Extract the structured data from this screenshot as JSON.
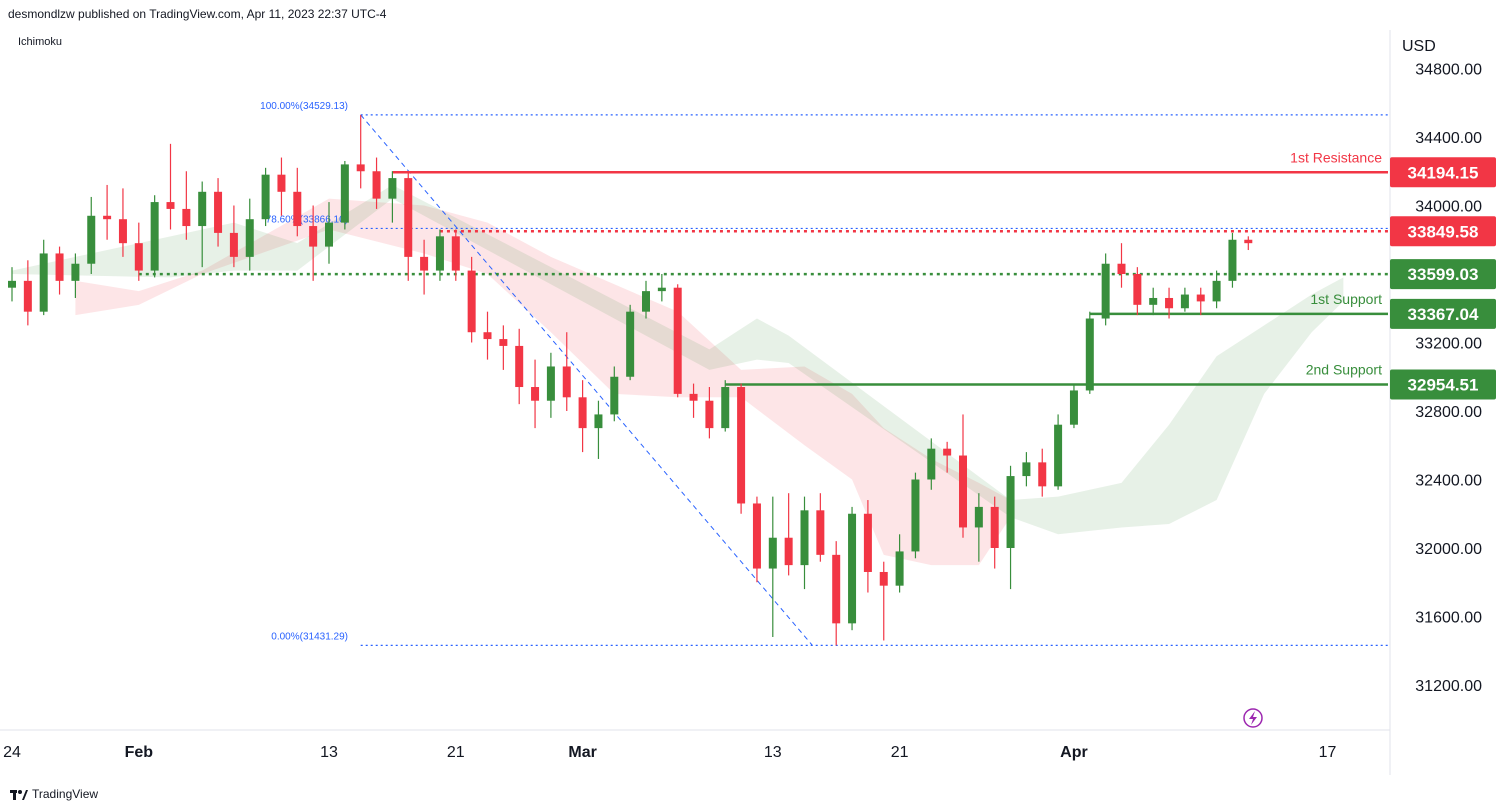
{
  "header": {
    "publisher": "desmondlzw published on TradingView.com, Apr 11, 2023 22:37 UTC-4"
  },
  "indicator": {
    "name": "Ichimoku"
  },
  "footer": {
    "brand": "TradingView"
  },
  "chart_data": {
    "type": "candlestick",
    "currency": "USD",
    "y_ticks": [
      "34800.00",
      "34400.00",
      "34000.00",
      "33600.00",
      "33200.00",
      "32800.00",
      "32400.00",
      "32000.00",
      "31600.00",
      "31200.00"
    ],
    "y_tick_values": [
      34800,
      34400,
      34000,
      33600,
      33200,
      32800,
      32400,
      32000,
      31600,
      31200
    ],
    "ylim": [
      30950,
      35000
    ],
    "x_ticks": [
      {
        "label": "24",
        "day": 0
      },
      {
        "label": "Feb",
        "day": 8
      },
      {
        "label": "13",
        "day": 20
      },
      {
        "label": "21",
        "day": 28
      },
      {
        "label": "Mar",
        "day": 36
      },
      {
        "label": "13",
        "day": 48
      },
      {
        "label": "21",
        "day": 56
      },
      {
        "label": "Apr",
        "day": 67
      },
      {
        "label": "17",
        "day": 83
      }
    ],
    "levels": [
      {
        "name": "resistance1",
        "label": "1st Resistance",
        "value": 34194.15,
        "value_text": "34194.15",
        "color": "#f23645",
        "style": "solid",
        "start_day": 24
      },
      {
        "name": "resistance-dotted",
        "label": "",
        "value": 33849.58,
        "value_text": "33849.58",
        "color": "#f23645",
        "style": "dotted",
        "start_day": 27
      },
      {
        "name": "pivot-dotted",
        "label": "",
        "value": 33599.03,
        "value_text": "33599.03",
        "color": "#388e3c",
        "style": "dotted",
        "start_day": 8
      },
      {
        "name": "support1",
        "label": "1st Support",
        "value": 33367.04,
        "value_text": "33367.04",
        "color": "#388e3c",
        "style": "solid",
        "start_day": 68
      },
      {
        "name": "support2",
        "label": "2nd Support",
        "value": 32954.51,
        "value_text": "32954.51",
        "color": "#388e3c",
        "style": "solid",
        "start_day": 45
      }
    ],
    "fibonacci": [
      {
        "label": "100.00%(34529.13)",
        "value": 34529.13,
        "start_day": 22
      },
      {
        "label": "78.60%(33866.10)",
        "value": 33866.1,
        "start_day": 22
      },
      {
        "label": "0.00%(31431.29)",
        "value": 31431.29,
        "start_day": 22
      }
    ],
    "trend_line": {
      "from": {
        "day": 22,
        "value": 34529.13
      },
      "to": {
        "day": 50.5,
        "value": 31431.29
      }
    },
    "candles": [
      {
        "o": 33520,
        "h": 33640,
        "l": 33440,
        "c": 33560
      },
      {
        "o": 33560,
        "h": 33680,
        "l": 33300,
        "c": 33380
      },
      {
        "o": 33380,
        "h": 33800,
        "l": 33360,
        "c": 33720
      },
      {
        "o": 33720,
        "h": 33760,
        "l": 33480,
        "c": 33560
      },
      {
        "o": 33560,
        "h": 33720,
        "l": 33460,
        "c": 33660
      },
      {
        "o": 33660,
        "h": 34050,
        "l": 33600,
        "c": 33940
      },
      {
        "o": 33940,
        "h": 34120,
        "l": 33800,
        "c": 33920
      },
      {
        "o": 33920,
        "h": 34100,
        "l": 33700,
        "c": 33780
      },
      {
        "o": 33780,
        "h": 33900,
        "l": 33560,
        "c": 33620
      },
      {
        "o": 33620,
        "h": 34060,
        "l": 33580,
        "c": 34020
      },
      {
        "o": 34020,
        "h": 34360,
        "l": 33860,
        "c": 33980
      },
      {
        "o": 33980,
        "h": 34200,
        "l": 33800,
        "c": 33880
      },
      {
        "o": 33880,
        "h": 34140,
        "l": 33640,
        "c": 34080
      },
      {
        "o": 34080,
        "h": 34160,
        "l": 33760,
        "c": 33840
      },
      {
        "o": 33840,
        "h": 34000,
        "l": 33640,
        "c": 33700
      },
      {
        "o": 33700,
        "h": 34040,
        "l": 33620,
        "c": 33920
      },
      {
        "o": 33920,
        "h": 34220,
        "l": 33880,
        "c": 34180
      },
      {
        "o": 34180,
        "h": 34280,
        "l": 33940,
        "c": 34080
      },
      {
        "o": 34080,
        "h": 34220,
        "l": 33820,
        "c": 33880
      },
      {
        "o": 33880,
        "h": 34000,
        "l": 33560,
        "c": 33760
      },
      {
        "o": 33760,
        "h": 34020,
        "l": 33660,
        "c": 33900
      },
      {
        "o": 33900,
        "h": 34260,
        "l": 33860,
        "c": 34240
      },
      {
        "o": 34240,
        "h": 34529,
        "l": 34100,
        "c": 34200
      },
      {
        "o": 34200,
        "h": 34280,
        "l": 33980,
        "c": 34040
      },
      {
        "o": 34040,
        "h": 34200,
        "l": 33900,
        "c": 34160
      },
      {
        "o": 34160,
        "h": 34200,
        "l": 33560,
        "c": 33700
      },
      {
        "o": 33700,
        "h": 33800,
        "l": 33480,
        "c": 33620
      },
      {
        "o": 33620,
        "h": 33860,
        "l": 33560,
        "c": 33820
      },
      {
        "o": 33820,
        "h": 33860,
        "l": 33560,
        "c": 33620
      },
      {
        "o": 33620,
        "h": 33700,
        "l": 33200,
        "c": 33260
      },
      {
        "o": 33260,
        "h": 33380,
        "l": 33100,
        "c": 33220
      },
      {
        "o": 33220,
        "h": 33300,
        "l": 33040,
        "c": 33180
      },
      {
        "o": 33180,
        "h": 33280,
        "l": 32840,
        "c": 32940
      },
      {
        "o": 32940,
        "h": 33100,
        "l": 32700,
        "c": 32860
      },
      {
        "o": 32860,
        "h": 33140,
        "l": 32760,
        "c": 33060
      },
      {
        "o": 33060,
        "h": 33260,
        "l": 32800,
        "c": 32880
      },
      {
        "o": 32880,
        "h": 32980,
        "l": 32560,
        "c": 32700
      },
      {
        "o": 32700,
        "h": 32860,
        "l": 32520,
        "c": 32780
      },
      {
        "o": 32780,
        "h": 33060,
        "l": 32740,
        "c": 33000
      },
      {
        "o": 33000,
        "h": 33420,
        "l": 32980,
        "c": 33380
      },
      {
        "o": 33380,
        "h": 33560,
        "l": 33340,
        "c": 33500
      },
      {
        "o": 33500,
        "h": 33600,
        "l": 33440,
        "c": 33520
      },
      {
        "o": 33520,
        "h": 33540,
        "l": 32880,
        "c": 32900
      },
      {
        "o": 32900,
        "h": 32960,
        "l": 32760,
        "c": 32860
      },
      {
        "o": 32860,
        "h": 32940,
        "l": 32640,
        "c": 32700
      },
      {
        "o": 32700,
        "h": 32980,
        "l": 32680,
        "c": 32940
      },
      {
        "o": 32940,
        "h": 32960,
        "l": 32200,
        "c": 32260
      },
      {
        "o": 32260,
        "h": 32300,
        "l": 31800,
        "c": 31880
      },
      {
        "o": 31880,
        "h": 32300,
        "l": 31480,
        "c": 32060
      },
      {
        "o": 32060,
        "h": 32320,
        "l": 31840,
        "c": 31900
      },
      {
        "o": 31900,
        "h": 32300,
        "l": 31760,
        "c": 32220
      },
      {
        "o": 32220,
        "h": 32320,
        "l": 31920,
        "c": 31960
      },
      {
        "o": 31960,
        "h": 32040,
        "l": 31431,
        "c": 31560
      },
      {
        "o": 31560,
        "h": 32240,
        "l": 31520,
        "c": 32200
      },
      {
        "o": 32200,
        "h": 32280,
        "l": 31740,
        "c": 31860
      },
      {
        "o": 31860,
        "h": 31920,
        "l": 31460,
        "c": 31780
      },
      {
        "o": 31780,
        "h": 32080,
        "l": 31740,
        "c": 31980
      },
      {
        "o": 31980,
        "h": 32440,
        "l": 31940,
        "c": 32400
      },
      {
        "o": 32400,
        "h": 32640,
        "l": 32340,
        "c": 32580
      },
      {
        "o": 32580,
        "h": 32620,
        "l": 32440,
        "c": 32540
      },
      {
        "o": 32540,
        "h": 32780,
        "l": 32060,
        "c": 32120
      },
      {
        "o": 32120,
        "h": 32320,
        "l": 31920,
        "c": 32240
      },
      {
        "o": 32240,
        "h": 32300,
        "l": 31880,
        "c": 32000
      },
      {
        "o": 32000,
        "h": 32480,
        "l": 31760,
        "c": 32420
      },
      {
        "o": 32420,
        "h": 32560,
        "l": 32360,
        "c": 32500
      },
      {
        "o": 32500,
        "h": 32580,
        "l": 32300,
        "c": 32360
      },
      {
        "o": 32360,
        "h": 32780,
        "l": 32340,
        "c": 32720
      },
      {
        "o": 32720,
        "h": 32960,
        "l": 32700,
        "c": 32920
      },
      {
        "o": 32920,
        "h": 33380,
        "l": 32900,
        "c": 33340
      },
      {
        "o": 33340,
        "h": 33720,
        "l": 33300,
        "c": 33660
      },
      {
        "o": 33660,
        "h": 33780,
        "l": 33520,
        "c": 33600
      },
      {
        "o": 33600,
        "h": 33640,
        "l": 33360,
        "c": 33420
      },
      {
        "o": 33420,
        "h": 33520,
        "l": 33360,
        "c": 33460
      },
      {
        "o": 33460,
        "h": 33520,
        "l": 33340,
        "c": 33400
      },
      {
        "o": 33400,
        "h": 33520,
        "l": 33380,
        "c": 33480
      },
      {
        "o": 33480,
        "h": 33520,
        "l": 33360,
        "c": 33440
      },
      {
        "o": 33440,
        "h": 33620,
        "l": 33400,
        "c": 33560
      },
      {
        "o": 33560,
        "h": 33840,
        "l": 33520,
        "c": 33800
      },
      {
        "o": 33800,
        "h": 33820,
        "l": 33740,
        "c": 33780
      }
    ],
    "kumo_red": [
      {
        "day": 4,
        "top": 33560,
        "bottom": 33360
      },
      {
        "day": 8,
        "top": 33500,
        "bottom": 33420
      },
      {
        "day": 12,
        "top": 33620,
        "bottom": 33600
      },
      {
        "day": 20,
        "top": 34040,
        "bottom": 33860
      },
      {
        "day": 26,
        "top": 34000,
        "bottom": 33720
      },
      {
        "day": 30,
        "top": 33900,
        "bottom": 33600
      },
      {
        "day": 34,
        "top": 33700,
        "bottom": 33260
      },
      {
        "day": 38,
        "top": 33540,
        "bottom": 32900
      },
      {
        "day": 42,
        "top": 33380,
        "bottom": 32880
      },
      {
        "day": 46,
        "top": 33040,
        "bottom": 32880
      },
      {
        "day": 50,
        "top": 33060,
        "bottom": 32600
      },
      {
        "day": 53,
        "top": 32900,
        "bottom": 32400
      },
      {
        "day": 55,
        "top": 32700,
        "bottom": 31960
      },
      {
        "day": 58,
        "top": 32520,
        "bottom": 31900
      },
      {
        "day": 61,
        "top": 32380,
        "bottom": 31900
      },
      {
        "day": 63,
        "top": 32280,
        "bottom": 32180
      }
    ],
    "kumo_green": [
      {
        "day": 0,
        "top": 33620,
        "bottom": 33600
      },
      {
        "day": 10,
        "top": 33820,
        "bottom": 33580
      },
      {
        "day": 14,
        "top": 33900,
        "bottom": 33620
      },
      {
        "day": 18,
        "top": 33780,
        "bottom": 33620
      },
      {
        "day": 24,
        "top": 34120,
        "bottom": 34040
      },
      {
        "day": 44,
        "top": 33160,
        "bottom": 33040
      },
      {
        "day": 47,
        "top": 33340,
        "bottom": 33100
      },
      {
        "day": 49,
        "top": 33240,
        "bottom": 33080
      },
      {
        "day": 63,
        "top": 32280,
        "bottom": 32180
      },
      {
        "day": 66,
        "top": 32300,
        "bottom": 32080
      },
      {
        "day": 70,
        "top": 32380,
        "bottom": 32120
      },
      {
        "day": 73,
        "top": 32720,
        "bottom": 32140
      },
      {
        "day": 76,
        "top": 33120,
        "bottom": 32280
      },
      {
        "day": 79,
        "top": 33300,
        "bottom": 32900
      },
      {
        "day": 82,
        "top": 33480,
        "bottom": 33260
      },
      {
        "day": 84,
        "top": 33580,
        "bottom": 33440
      }
    ]
  }
}
